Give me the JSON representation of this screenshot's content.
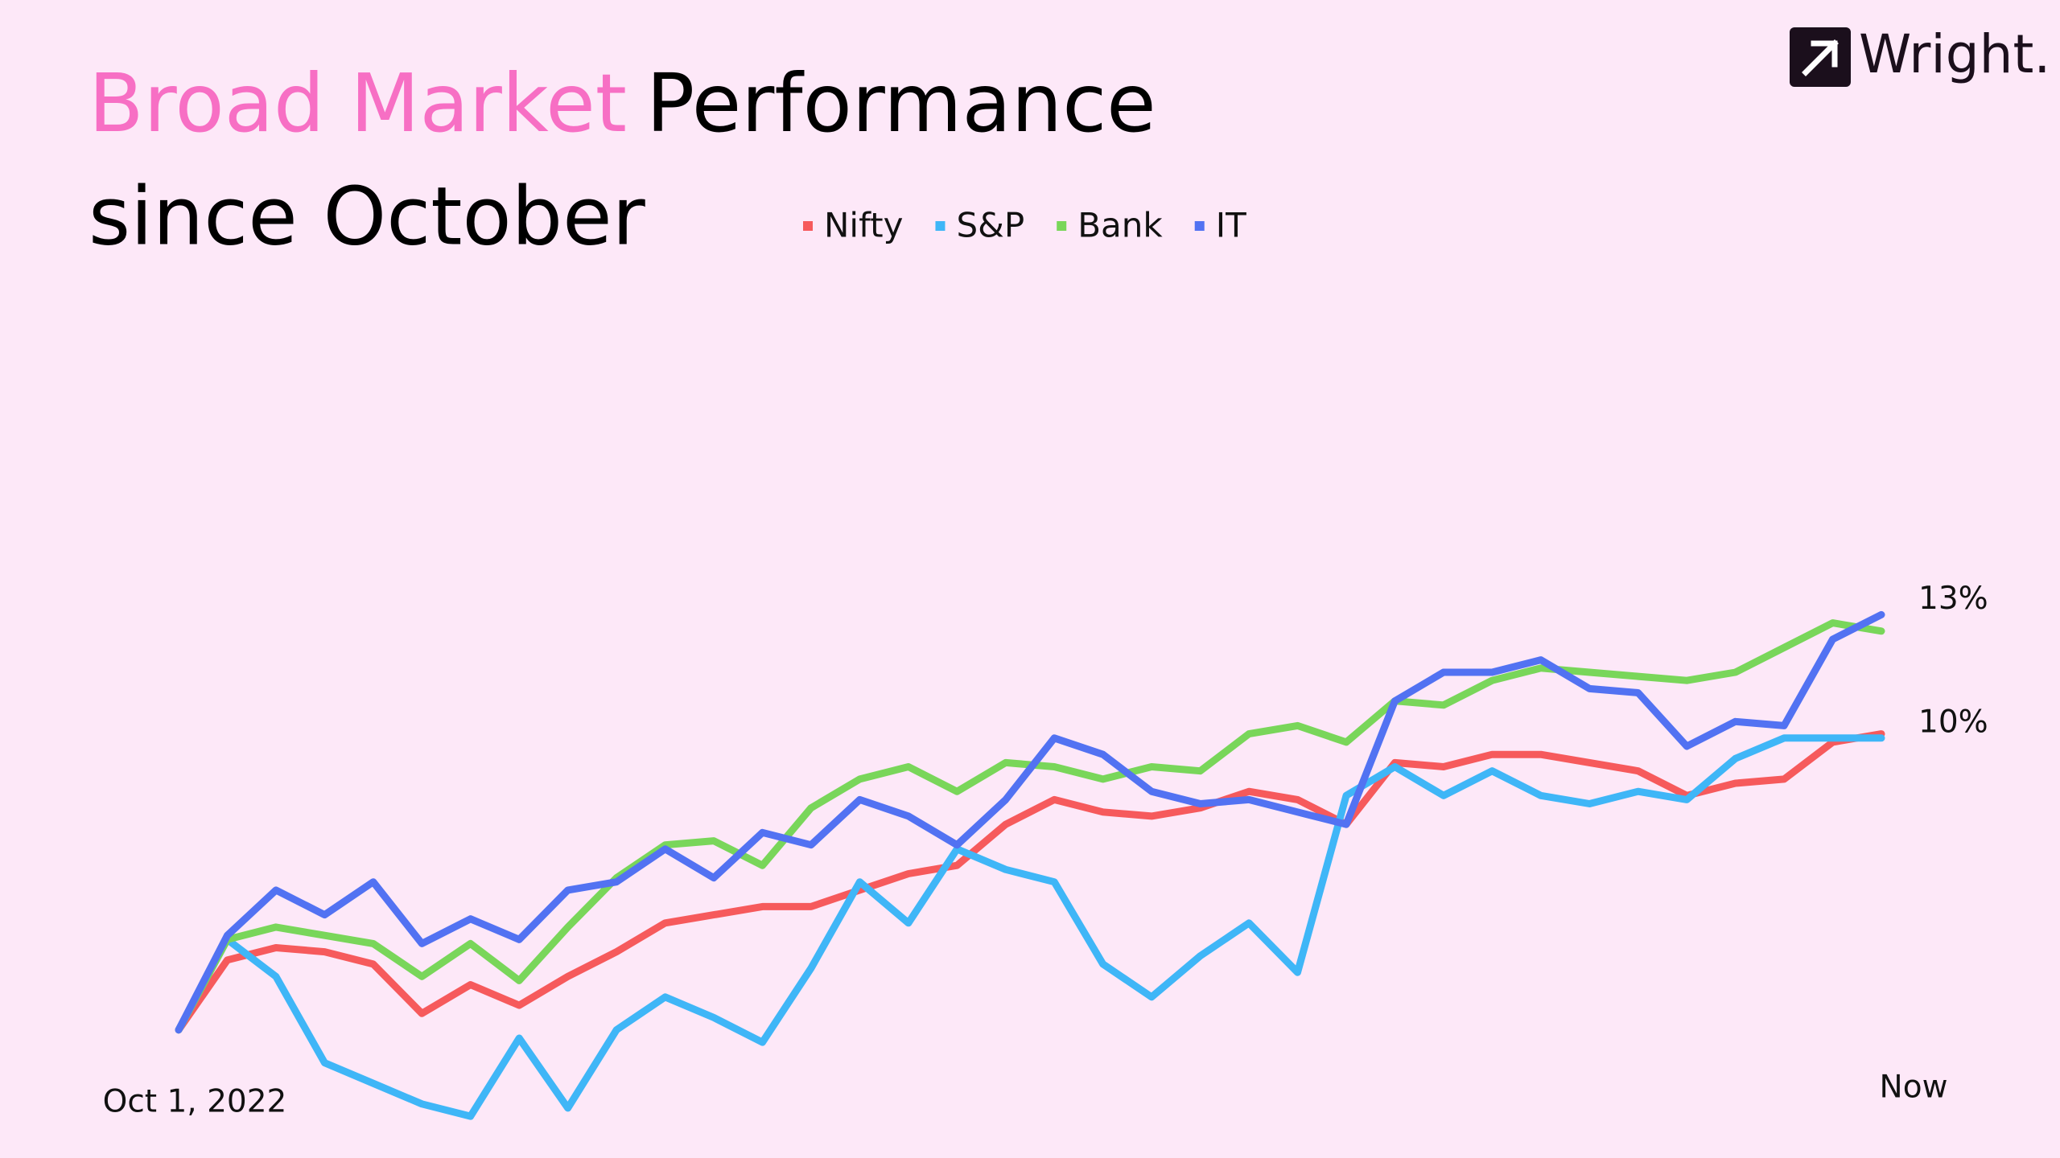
{
  "brand": "Wright.",
  "chart_data": {
    "type": "line",
    "title_highlight": "Broad Market",
    "title_rest": "Performance",
    "title_line2": "since October",
    "categories": [
      "Oct 1, 2022",
      null,
      null,
      null,
      null,
      null,
      null,
      null,
      null,
      null,
      null,
      null,
      null,
      null,
      null,
      null,
      null,
      null,
      null,
      null,
      null,
      null,
      null,
      null,
      null,
      null,
      null,
      null,
      null,
      null,
      null,
      null,
      null,
      null,
      null,
      "Now"
    ],
    "ylim": [
      0,
      16
    ],
    "grid": false,
    "series": [
      {
        "name": "Nifty",
        "color": "#f65a5c",
        "values": [
          2.9,
          4.6,
          4.9,
          4.8,
          4.5,
          3.3,
          4.0,
          3.5,
          4.2,
          4.8,
          5.5,
          5.7,
          5.9,
          5.9,
          6.3,
          6.7,
          6.9,
          7.9,
          8.5,
          8.2,
          8.1,
          8.3,
          8.7,
          8.5,
          7.9,
          9.4,
          9.3,
          9.6,
          9.6,
          9.4,
          9.2,
          8.6,
          8.9,
          9.0,
          9.9,
          10.1
        ]
      },
      {
        "name": "S&P",
        "color": "#3fb6f7",
        "values": [
          2.9,
          5.1,
          4.2,
          2.1,
          1.6,
          1.1,
          0.8,
          2.7,
          1.0,
          2.9,
          3.7,
          3.2,
          2.6,
          4.4,
          6.5,
          5.5,
          7.3,
          6.8,
          6.5,
          4.5,
          3.7,
          4.7,
          5.5,
          4.3,
          8.6,
          9.3,
          8.6,
          9.2,
          8.6,
          8.4,
          8.7,
          8.5,
          9.5,
          10.0,
          10.0,
          10.0
        ]
      },
      {
        "name": "Bank",
        "color": "#79d65a",
        "values": [
          2.9,
          5.1,
          5.4,
          5.2,
          5.0,
          4.2,
          5.0,
          4.1,
          5.4,
          6.6,
          7.4,
          7.5,
          6.9,
          8.3,
          9.0,
          9.3,
          8.7,
          9.4,
          9.3,
          9.0,
          9.3,
          9.2,
          10.1,
          10.3,
          9.9,
          10.9,
          10.8,
          11.4,
          11.7,
          11.6,
          11.5,
          11.4,
          11.6,
          12.2,
          12.8,
          12.6
        ]
      },
      {
        "name": "IT",
        "color": "#5272f2",
        "values": [
          2.9,
          5.2,
          6.3,
          5.7,
          6.5,
          5.0,
          5.6,
          5.1,
          6.3,
          6.5,
          7.3,
          6.6,
          7.7,
          7.4,
          8.5,
          8.1,
          7.4,
          8.5,
          10.0,
          9.6,
          8.7,
          8.4,
          8.5,
          8.2,
          7.9,
          10.9,
          11.6,
          11.6,
          11.9,
          11.2,
          11.1,
          9.8,
          10.4,
          10.3,
          12.4,
          13.0
        ]
      }
    ],
    "annotations": [
      {
        "text": "13%",
        "y": 13
      },
      {
        "text": "10%",
        "y": 10
      }
    ]
  }
}
